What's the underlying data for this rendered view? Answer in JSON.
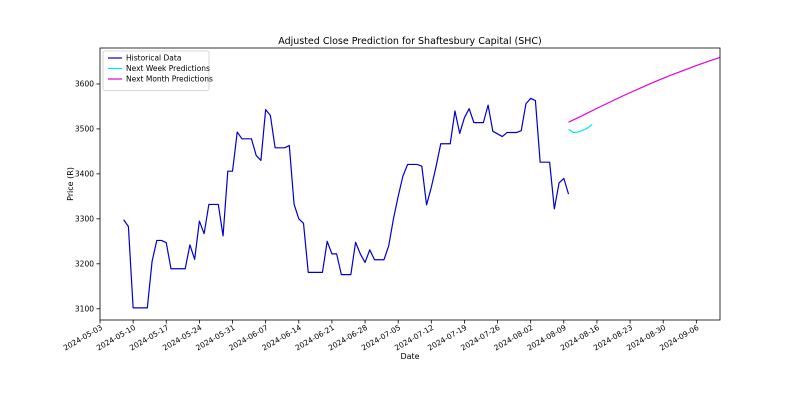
{
  "chart_data": {
    "type": "line",
    "title": "Adjusted Close Prediction for Shaftesbury Capital (SHC)",
    "xlabel": "Date",
    "ylabel": "Price (R)",
    "x_axis": "date",
    "xlim": [
      "2024-05-03",
      "2024-09-11"
    ],
    "ylim": [
      3075,
      3680
    ],
    "x_ticks": [
      "2024-05-03",
      "2024-05-10",
      "2024-05-17",
      "2024-05-24",
      "2024-05-31",
      "2024-06-07",
      "2024-06-14",
      "2024-06-21",
      "2024-06-28",
      "2024-07-05",
      "2024-07-12",
      "2024-07-19",
      "2024-07-26",
      "2024-08-02",
      "2024-08-09",
      "2024-08-16",
      "2024-08-23",
      "2024-08-30",
      "2024-09-06"
    ],
    "y_ticks": [
      3100,
      3200,
      3300,
      3400,
      3500,
      3600
    ],
    "legend": {
      "placement": "upper-left",
      "entries": [
        "Historical Data",
        "Next Week Predictions",
        "Next Month Predictions"
      ]
    },
    "grid": false,
    "series": [
      {
        "name": "Historical Data",
        "color": "#0000cd",
        "points": [
          [
            "2024-05-08",
            3298
          ],
          [
            "2024-05-09",
            3283
          ],
          [
            "2024-05-10",
            3102
          ],
          [
            "2024-05-13",
            3102
          ],
          [
            "2024-05-14",
            3205
          ],
          [
            "2024-05-15",
            3252
          ],
          [
            "2024-05-16",
            3252
          ],
          [
            "2024-05-17",
            3247
          ],
          [
            "2024-05-18",
            3189
          ],
          [
            "2024-05-21",
            3189
          ],
          [
            "2024-05-22",
            3242
          ],
          [
            "2024-05-23",
            3210
          ],
          [
            "2024-05-24",
            3295
          ],
          [
            "2024-05-25",
            3267
          ],
          [
            "2024-05-26",
            3332
          ],
          [
            "2024-05-28",
            3332
          ],
          [
            "2024-05-29",
            3262
          ],
          [
            "2024-05-30",
            3406
          ],
          [
            "2024-05-31",
            3406
          ],
          [
            "2024-06-01",
            3493
          ],
          [
            "2024-06-02",
            3478
          ],
          [
            "2024-06-04",
            3478
          ],
          [
            "2024-06-05",
            3441
          ],
          [
            "2024-06-06",
            3430
          ],
          [
            "2024-06-07",
            3543
          ],
          [
            "2024-06-08",
            3530
          ],
          [
            "2024-06-09",
            3458
          ],
          [
            "2024-06-11",
            3458
          ],
          [
            "2024-06-12",
            3463
          ],
          [
            "2024-06-13",
            3333
          ],
          [
            "2024-06-14",
            3300
          ],
          [
            "2024-06-15",
            3290
          ],
          [
            "2024-06-16",
            3181
          ],
          [
            "2024-06-19",
            3181
          ],
          [
            "2024-06-20",
            3250
          ],
          [
            "2024-06-21",
            3222
          ],
          [
            "2024-06-22",
            3222
          ],
          [
            "2024-06-23",
            3176
          ],
          [
            "2024-06-25",
            3176
          ],
          [
            "2024-06-26",
            3248
          ],
          [
            "2024-06-27",
            3222
          ],
          [
            "2024-06-28",
            3203
          ],
          [
            "2024-06-29",
            3231
          ],
          [
            "2024-06-30",
            3209
          ],
          [
            "2024-07-02",
            3209
          ],
          [
            "2024-07-03",
            3240
          ],
          [
            "2024-07-04",
            3300
          ],
          [
            "2024-07-05",
            3350
          ],
          [
            "2024-07-06",
            3395
          ],
          [
            "2024-07-07",
            3421
          ],
          [
            "2024-07-09",
            3421
          ],
          [
            "2024-07-10",
            3417
          ],
          [
            "2024-07-11",
            3331
          ],
          [
            "2024-07-12",
            3370
          ],
          [
            "2024-07-13",
            3416
          ],
          [
            "2024-07-14",
            3467
          ],
          [
            "2024-07-16",
            3467
          ],
          [
            "2024-07-17",
            3540
          ],
          [
            "2024-07-18",
            3490
          ],
          [
            "2024-07-19",
            3525
          ],
          [
            "2024-07-20",
            3545
          ],
          [
            "2024-07-21",
            3514
          ],
          [
            "2024-07-23",
            3514
          ],
          [
            "2024-07-24",
            3553
          ],
          [
            "2024-07-25",
            3495
          ],
          [
            "2024-07-27",
            3483
          ],
          [
            "2024-07-28",
            3492
          ],
          [
            "2024-07-30",
            3492
          ],
          [
            "2024-07-31",
            3496
          ],
          [
            "2024-08-01",
            3556
          ],
          [
            "2024-08-02",
            3568
          ],
          [
            "2024-08-03",
            3563
          ],
          [
            "2024-08-04",
            3426
          ],
          [
            "2024-08-06",
            3426
          ],
          [
            "2024-08-07",
            3322
          ],
          [
            "2024-08-08",
            3380
          ],
          [
            "2024-08-09",
            3390
          ],
          [
            "2024-08-10",
            3355
          ]
        ]
      },
      {
        "name": "Next Week Predictions",
        "color": "#00e5ee",
        "points": [
          [
            "2024-08-10",
            3499
          ],
          [
            "2024-08-11",
            3492
          ],
          [
            "2024-08-12",
            3493
          ],
          [
            "2024-08-13",
            3497
          ],
          [
            "2024-08-14",
            3502
          ],
          [
            "2024-08-15",
            3510
          ]
        ]
      },
      {
        "name": "Next Month Predictions",
        "color": "#e000e0",
        "points": [
          [
            "2024-08-10",
            3515
          ],
          [
            "2024-08-13",
            3530
          ],
          [
            "2024-08-16",
            3546
          ],
          [
            "2024-08-19",
            3561
          ],
          [
            "2024-08-22",
            3576
          ],
          [
            "2024-08-25",
            3590
          ],
          [
            "2024-08-28",
            3604
          ],
          [
            "2024-08-31",
            3617
          ],
          [
            "2024-09-03",
            3629
          ],
          [
            "2024-09-06",
            3641
          ],
          [
            "2024-09-09",
            3652
          ],
          [
            "2024-09-11",
            3659
          ]
        ]
      }
    ]
  }
}
